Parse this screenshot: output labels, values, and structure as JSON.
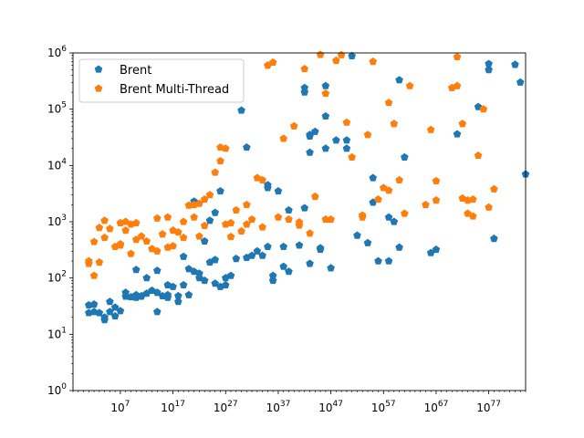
{
  "chart_data": {
    "type": "scatter",
    "title": "",
    "xlabel": "",
    "ylabel": "",
    "x_scale": "log",
    "y_scale": "log",
    "xlim": [
      0.01,
      1e+84
    ],
    "ylim": [
      1,
      1000000.0
    ],
    "grid": false,
    "legend_position": "top-left",
    "x_ticks": [
      {
        "base": "10",
        "exp": "7",
        "value": 10000000.0
      },
      {
        "base": "10",
        "exp": "17",
        "value": 1e+17
      },
      {
        "base": "10",
        "exp": "27",
        "value": 1e+27
      },
      {
        "base": "10",
        "exp": "37",
        "value": 1e+37
      },
      {
        "base": "10",
        "exp": "47",
        "value": 1e+47
      },
      {
        "base": "10",
        "exp": "57",
        "value": 1e+57
      },
      {
        "base": "10",
        "exp": "67",
        "value": 1e+67
      },
      {
        "base": "10",
        "exp": "77",
        "value": 1e+77
      }
    ],
    "y_ticks": [
      {
        "base": "10",
        "exp": "0",
        "value": 1
      },
      {
        "base": "10",
        "exp": "1",
        "value": 10
      },
      {
        "base": "10",
        "exp": "2",
        "value": 100
      },
      {
        "base": "10",
        "exp": "3",
        "value": 1000
      },
      {
        "base": "10",
        "exp": "4",
        "value": 10000
      },
      {
        "base": "10",
        "exp": "5",
        "value": 100000
      },
      {
        "base": "10",
        "exp": "6",
        "value": 1000000
      }
    ],
    "series": [
      {
        "name": "Brent",
        "color": "#1f77b4",
        "marker": "pentagon",
        "points": [
          [
            10.0,
            33
          ],
          [
            10.0,
            24
          ],
          [
            100.0,
            34
          ],
          [
            100.0,
            25
          ],
          [
            1000.0,
            24
          ],
          [
            10000.0,
            20
          ],
          [
            10000.0,
            18
          ],
          [
            100000.0,
            38
          ],
          [
            100000.0,
            25
          ],
          [
            1000000.0,
            21
          ],
          [
            1000000.0,
            30
          ],
          [
            10000000.0,
            26
          ],
          [
            100000000.0,
            55
          ],
          [
            100000000.0,
            47
          ],
          [
            1000000000.0,
            46
          ],
          [
            10000000000.0,
            50
          ],
          [
            10000000000.0,
            45
          ],
          [
            10000000000.0,
            140
          ],
          [
            100000000000.0,
            48
          ],
          [
            100000000000.0,
            47
          ],
          [
            1000000000000.0,
            53
          ],
          [
            1000000000000.0,
            100
          ],
          [
            10000000000000.0,
            60
          ],
          [
            100000000000000.0,
            55
          ],
          [
            100000000000000.0,
            25
          ],
          [
            100000000000000.0,
            135
          ],
          [
            1000000000000000.0,
            48
          ],
          [
            1e+16,
            50
          ],
          [
            1e+16,
            75
          ],
          [
            1e+16,
            45
          ],
          [
            1e+17,
            70
          ],
          [
            1e+18,
            48
          ],
          [
            1e+18,
            38
          ],
          [
            1e+19,
            75
          ],
          [
            1e+19,
            240
          ],
          [
            1e+20,
            50
          ],
          [
            1e+20,
            145
          ],
          [
            1e+21,
            2300
          ],
          [
            1e+21,
            130
          ],
          [
            1e+22,
            120
          ],
          [
            1e+22,
            100
          ],
          [
            1e+23,
            90
          ],
          [
            1e+23,
            450
          ],
          [
            1e+24,
            1050
          ],
          [
            1e+24,
            190
          ],
          [
            1e+25,
            80
          ],
          [
            1e+25,
            210
          ],
          [
            1e+25,
            1450
          ],
          [
            1e+26,
            70
          ],
          [
            1e+26,
            3500
          ],
          [
            1e+27,
            100
          ],
          [
            1e+27,
            75
          ],
          [
            1e+28,
            110
          ],
          [
            1e+29,
            220
          ],
          [
            1e+30,
            95000
          ],
          [
            1e+31,
            230
          ],
          [
            1e+31,
            21000
          ],
          [
            1e+32,
            250
          ],
          [
            1e+33,
            300
          ],
          [
            1e+34,
            250
          ],
          [
            1e+35,
            4500
          ],
          [
            1e+35,
            4000
          ],
          [
            1e+35,
            360
          ],
          [
            1e+36,
            110
          ],
          [
            1e+36,
            90
          ],
          [
            1e+37,
            3500
          ],
          [
            1e+38,
            160
          ],
          [
            1e+38,
            360
          ],
          [
            1e+39,
            1600
          ],
          [
            1e+39,
            130
          ],
          [
            1e+41,
            380
          ],
          [
            1e+42,
            240000
          ],
          [
            1e+42,
            200000
          ],
          [
            1e+42,
            1750
          ],
          [
            1e+43,
            17000
          ],
          [
            1e+43,
            33000
          ],
          [
            1e+43,
            35000
          ],
          [
            1e+43,
            180
          ],
          [
            1e+44,
            40000
          ],
          [
            1e+45,
            320
          ],
          [
            1e+45,
            340
          ],
          [
            1e+46,
            20000
          ],
          [
            1e+46,
            75000
          ],
          [
            1e+46,
            260000
          ],
          [
            1e+47,
            150
          ],
          [
            1e+48,
            28000
          ],
          [
            1e+50,
            20000
          ],
          [
            1e+50,
            28000
          ],
          [
            1e+51,
            880000
          ],
          [
            1e+52,
            570
          ],
          [
            1e+54,
            420
          ],
          [
            1e+55,
            6000
          ],
          [
            1e+55,
            2200
          ],
          [
            1e+56,
            200
          ],
          [
            1e+58,
            1200
          ],
          [
            1e+58,
            200
          ],
          [
            1e+59,
            1000
          ],
          [
            1e+60,
            330000
          ],
          [
            1e+60,
            350
          ],
          [
            1e+61,
            14000
          ],
          [
            1e+66,
            280
          ],
          [
            1e+67,
            320
          ],
          [
            1e+71,
            36000
          ],
          [
            1e+75,
            110000
          ],
          [
            1e+77,
            640000
          ],
          [
            1e+77,
            500000
          ],
          [
            1e+78,
            500
          ],
          [
            1e+82,
            620000
          ],
          [
            1e+83,
            300000
          ],
          [
            1e+84,
            7000
          ]
        ]
      },
      {
        "name": "Brent Multi-Thread",
        "color": "#ff7f0e",
        "marker": "pentagon",
        "points": [
          [
            10.0,
            200
          ],
          [
            10.0,
            180
          ],
          [
            100.0,
            440
          ],
          [
            100.0,
            110
          ],
          [
            1000.0,
            190
          ],
          [
            1000.0,
            780
          ],
          [
            10000.0,
            1050
          ],
          [
            10000.0,
            520
          ],
          [
            100000.0,
            750
          ],
          [
            1000000.0,
            360
          ],
          [
            10000000.0,
            400
          ],
          [
            10000000.0,
            380
          ],
          [
            10000000.0,
            950
          ],
          [
            100000000.0,
            700
          ],
          [
            100000000.0,
            1000
          ],
          [
            1000000000.0,
            900
          ],
          [
            1000000000.0,
            270
          ],
          [
            10000000000.0,
            480
          ],
          [
            10000000000.0,
            950
          ],
          [
            100000000000.0,
            550
          ],
          [
            1000000000000.0,
            450
          ],
          [
            10000000000000.0,
            330
          ],
          [
            100000000000000.0,
            300
          ],
          [
            100000000000000.0,
            1150
          ],
          [
            1000000000000000.0,
            600
          ],
          [
            1e+16,
            1200
          ],
          [
            1e+16,
            350
          ],
          [
            1e+17,
            370
          ],
          [
            1e+17,
            700
          ],
          [
            1e+18,
            650
          ],
          [
            1e+19,
            1000
          ],
          [
            1e+19,
            520
          ],
          [
            1e+20,
            1950
          ],
          [
            1e+21,
            1200
          ],
          [
            1e+21,
            2000
          ],
          [
            1e+22,
            550
          ],
          [
            1e+22,
            2100
          ],
          [
            1e+23,
            850
          ],
          [
            1e+23,
            2500
          ],
          [
            1e+24,
            3000
          ],
          [
            1e+25,
            7500
          ],
          [
            1e+26,
            12000
          ],
          [
            1e+26,
            21000
          ],
          [
            1e+27,
            20000
          ],
          [
            1e+27,
            900
          ],
          [
            1e+28,
            950
          ],
          [
            1e+28,
            540
          ],
          [
            1e+29,
            1600
          ],
          [
            1e+30,
            680
          ],
          [
            1e+31,
            2000
          ],
          [
            1e+31,
            900
          ],
          [
            1e+32,
            1100
          ],
          [
            1e+33,
            6000
          ],
          [
            1e+34,
            5500
          ],
          [
            1e+34,
            800
          ],
          [
            1e+35,
            600000
          ],
          [
            1e+36,
            680000
          ],
          [
            1e+37,
            1200
          ],
          [
            1e+38,
            30000
          ],
          [
            1e+39,
            1100
          ],
          [
            1e+40,
            50000
          ],
          [
            1e+41,
            860
          ],
          [
            1e+41,
            980
          ],
          [
            1e+42,
            520000
          ],
          [
            1e+43,
            620
          ],
          [
            1e+44,
            2800
          ],
          [
            1e+45,
            930000
          ],
          [
            1e+46,
            1100
          ],
          [
            1e+46,
            190000
          ],
          [
            1e+47,
            1100
          ],
          [
            1e+48,
            730000
          ],
          [
            1e+49,
            920000
          ],
          [
            1e+50,
            58000
          ],
          [
            1e+51,
            14000
          ],
          [
            1e+53,
            1300
          ],
          [
            1e+53,
            1200
          ],
          [
            1e+54,
            35000
          ],
          [
            1e+55,
            700000
          ],
          [
            1e+56,
            2500
          ],
          [
            1e+57,
            4000
          ],
          [
            1e+58,
            130000
          ],
          [
            1e+58,
            3600
          ],
          [
            1e+59,
            55000
          ],
          [
            1e+60,
            5500
          ],
          [
            1e+61,
            1400
          ],
          [
            1e+62,
            260000
          ],
          [
            1e+65,
            2000
          ],
          [
            1e+66,
            43000
          ],
          [
            1e+67,
            5300
          ],
          [
            1e+67,
            2400
          ],
          [
            1e+70,
            240000
          ],
          [
            1e+71,
            850000
          ],
          [
            1e+71,
            260000
          ],
          [
            1e+72,
            55000
          ],
          [
            1e+72,
            2600
          ],
          [
            1e+73,
            2400
          ],
          [
            1e+73,
            1400
          ],
          [
            1e+74,
            1250
          ],
          [
            1e+74,
            2500
          ],
          [
            1e+75,
            15000
          ],
          [
            1e+76,
            100000
          ],
          [
            1e+77,
            1800
          ],
          [
            1e+78,
            3800
          ]
        ]
      }
    ]
  }
}
